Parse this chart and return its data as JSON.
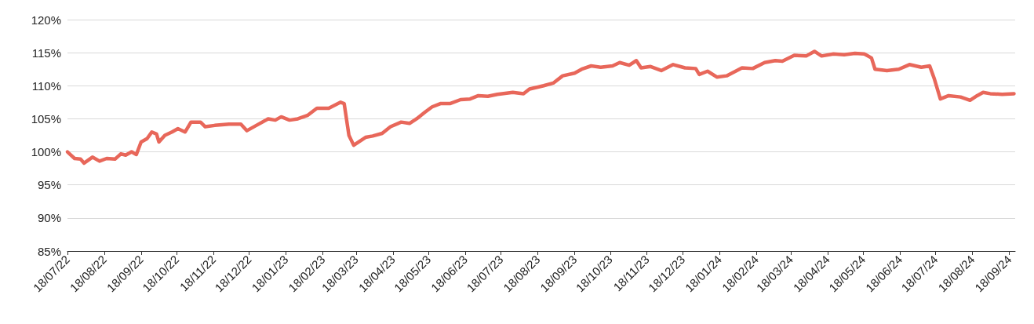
{
  "chart_data": {
    "type": "line",
    "marker": "none",
    "line_style": "solid",
    "grid": "y",
    "xlim": [
      "2022-07-18",
      "2024-09-23"
    ],
    "xticks": [
      {
        "value": "2022-07-18",
        "label": "18/07/22"
      },
      {
        "value": "2022-08-18",
        "label": "18/08/22"
      },
      {
        "value": "2022-09-18",
        "label": "18/09/22"
      },
      {
        "value": "2022-10-18",
        "label": "18/10/22"
      },
      {
        "value": "2022-11-18",
        "label": "18/11/22"
      },
      {
        "value": "2022-12-18",
        "label": "18/12/22"
      },
      {
        "value": "2023-01-18",
        "label": "18/01/23"
      },
      {
        "value": "2023-02-18",
        "label": "18/02/23"
      },
      {
        "value": "2023-03-18",
        "label": "18/03/23"
      },
      {
        "value": "2023-04-18",
        "label": "18/04/23"
      },
      {
        "value": "2023-05-18",
        "label": "18/05/23"
      },
      {
        "value": "2023-06-18",
        "label": "18/06/23"
      },
      {
        "value": "2023-07-18",
        "label": "18/07/23"
      },
      {
        "value": "2023-08-18",
        "label": "18/08/23"
      },
      {
        "value": "2023-09-18",
        "label": "18/09/23"
      },
      {
        "value": "2023-10-18",
        "label": "18/10/23"
      },
      {
        "value": "2023-11-18",
        "label": "18/11/23"
      },
      {
        "value": "2023-12-18",
        "label": "18/12/23"
      },
      {
        "value": "2024-01-18",
        "label": "18/01/24"
      },
      {
        "value": "2024-02-18",
        "label": "18/02/24"
      },
      {
        "value": "2024-03-18",
        "label": "18/03/24"
      },
      {
        "value": "2024-04-18",
        "label": "18/04/24"
      },
      {
        "value": "2024-05-18",
        "label": "18/05/24"
      },
      {
        "value": "2024-06-18",
        "label": "18/06/24"
      },
      {
        "value": "2024-07-18",
        "label": "18/07/24"
      },
      {
        "value": "2024-08-18",
        "label": "18/08/24"
      },
      {
        "value": "2024-09-18",
        "label": "18/09/24"
      }
    ],
    "ylim": [
      85,
      120
    ],
    "yticks": [
      {
        "value": 85,
        "label": "85%"
      },
      {
        "value": 90,
        "label": "90%"
      },
      {
        "value": 95,
        "label": "95%"
      },
      {
        "value": 100,
        "label": "100%"
      },
      {
        "value": 105,
        "label": "105%"
      },
      {
        "value": 110,
        "label": "110%"
      },
      {
        "value": 115,
        "label": "115%"
      },
      {
        "value": 120,
        "label": "120%"
      }
    ],
    "x": [
      "2022-07-18",
      "2022-07-21",
      "2022-07-24",
      "2022-07-29",
      "2022-08-01",
      "2022-08-08",
      "2022-08-14",
      "2022-08-20",
      "2022-08-27",
      "2022-09-01",
      "2022-09-05",
      "2022-09-10",
      "2022-09-14",
      "2022-09-18",
      "2022-09-23",
      "2022-09-27",
      "2022-10-01",
      "2022-10-03",
      "2022-10-08",
      "2022-10-14",
      "2022-10-19",
      "2022-10-25",
      "2022-10-30",
      "2022-11-07",
      "2022-11-11",
      "2022-11-19",
      "2022-12-01",
      "2022-12-11",
      "2022-12-16",
      "2022-12-24",
      "2023-01-03",
      "2023-01-09",
      "2023-01-14",
      "2023-01-21",
      "2023-01-28",
      "2023-02-05",
      "2023-02-13",
      "2023-02-23",
      "2023-03-05",
      "2023-03-08",
      "2023-03-12",
      "2023-03-16",
      "2023-03-21",
      "2023-03-26",
      "2023-04-01",
      "2023-04-09",
      "2023-04-16",
      "2023-04-25",
      "2023-05-02",
      "2023-05-08",
      "2023-05-15",
      "2023-05-21",
      "2023-05-28",
      "2023-06-05",
      "2023-06-14",
      "2023-06-22",
      "2023-06-29",
      "2023-07-07",
      "2023-07-15",
      "2023-07-28",
      "2023-08-06",
      "2023-08-11",
      "2023-08-23",
      "2023-08-31",
      "2023-09-08",
      "2023-09-18",
      "2023-09-24",
      "2023-10-02",
      "2023-10-10",
      "2023-10-20",
      "2023-10-26",
      "2023-11-03",
      "2023-11-09",
      "2023-11-13",
      "2023-11-21",
      "2023-11-30",
      "2023-12-10",
      "2023-12-20",
      "2023-12-29",
      "2024-01-01",
      "2024-01-08",
      "2024-01-16",
      "2024-01-24",
      "2024-02-06",
      "2024-02-15",
      "2024-02-25",
      "2024-03-05",
      "2024-03-11",
      "2024-03-21",
      "2024-03-31",
      "2024-04-07",
      "2024-04-13",
      "2024-04-23",
      "2024-05-02",
      "2024-05-11",
      "2024-05-19",
      "2024-05-25",
      "2024-05-28",
      "2024-06-07",
      "2024-06-17",
      "2024-06-26",
      "2024-07-06",
      "2024-07-13",
      "2024-07-17",
      "2024-07-22",
      "2024-07-29",
      "2024-08-08",
      "2024-08-16",
      "2024-08-22",
      "2024-08-27",
      "2024-09-02",
      "2024-09-12",
      "2024-09-22"
    ],
    "series": [
      {
        "color": "#e8675a",
        "values": [
          100,
          99.5,
          99,
          98.9,
          98.3,
          99.2,
          98.6,
          99.0,
          98.9,
          99.7,
          99.5,
          100.0,
          99.6,
          101.5,
          102.0,
          103.0,
          102.7,
          101.5,
          102.5,
          103.0,
          103.5,
          103.0,
          104.5,
          104.5,
          103.8,
          104.0,
          104.2,
          104.2,
          103.2,
          104.0,
          105.0,
          104.8,
          105.3,
          104.8,
          105.0,
          105.5,
          106.6,
          106.6,
          107.5,
          107.3,
          102.5,
          101.0,
          101.6,
          102.2,
          102.4,
          102.8,
          103.8,
          104.5,
          104.3,
          105.0,
          106.0,
          106.8,
          107.3,
          107.3,
          107.9,
          108.0,
          108.5,
          108.4,
          108.7,
          109.0,
          108.8,
          109.5,
          110.0,
          110.4,
          111.5,
          111.9,
          112.5,
          113.0,
          112.8,
          113.0,
          113.5,
          113.1,
          113.8,
          112.7,
          112.9,
          112.3,
          113.2,
          112.7,
          112.6,
          111.7,
          112.2,
          111.3,
          111.5,
          112.7,
          112.6,
          113.5,
          113.8,
          113.7,
          114.6,
          114.5,
          115.2,
          114.5,
          114.8,
          114.7,
          114.9,
          114.8,
          114.2,
          112.5,
          112.3,
          112.5,
          113.2,
          112.8,
          113.0,
          111.0,
          108.0,
          108.5,
          108.3,
          107.8,
          108.5,
          109.0,
          108.8,
          108.7,
          108.8
        ]
      }
    ]
  }
}
